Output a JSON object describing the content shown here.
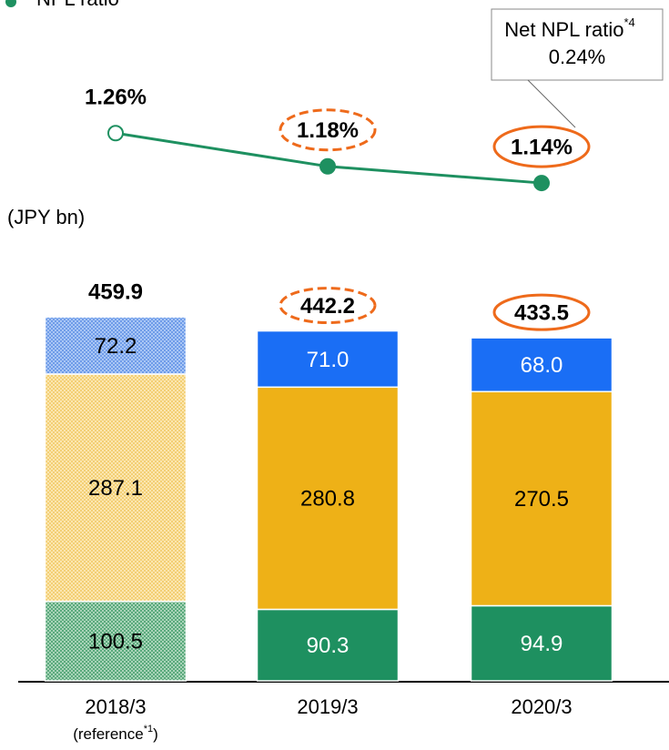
{
  "chart_data": {
    "type": "bar",
    "legend": "NPL ratio",
    "unit_label": "(JPY bn)",
    "categories": [
      "2018/3",
      "2019/3",
      "2020/3"
    ],
    "category_notes": [
      {
        "text": "(reference",
        "sup": "*1",
        "close": ")"
      },
      null,
      null
    ],
    "series": [
      {
        "color": "#1e9060",
        "values": [
          100.5,
          90.3,
          94.9
        ]
      },
      {
        "color": "#eeb117",
        "values": [
          287.1,
          280.8,
          270.5
        ]
      },
      {
        "color": "#1a6ef5",
        "values": [
          72.2,
          71.0,
          68.0
        ],
        "value_labels": [
          "72.2",
          "71.0",
          "68.0"
        ]
      }
    ],
    "hatched": [
      true,
      false,
      false
    ],
    "totals": [
      459.9,
      442.2,
      433.5
    ],
    "ylim": [
      0,
      460
    ],
    "line": {
      "name": "NPL ratio",
      "color": "#1e9060",
      "axis": "y2",
      "values": [
        1.26,
        1.18,
        1.14
      ],
      "value_labels": [
        "1.26%",
        "1.18%",
        "1.14%"
      ],
      "hollow": [
        true,
        false,
        false
      ]
    },
    "y2lim": [
      1.0,
      1.3
    ],
    "callout": {
      "text": "Net NPL ratio",
      "sup": "*4",
      "value": 0.24,
      "value_label": "0.24%"
    }
  }
}
